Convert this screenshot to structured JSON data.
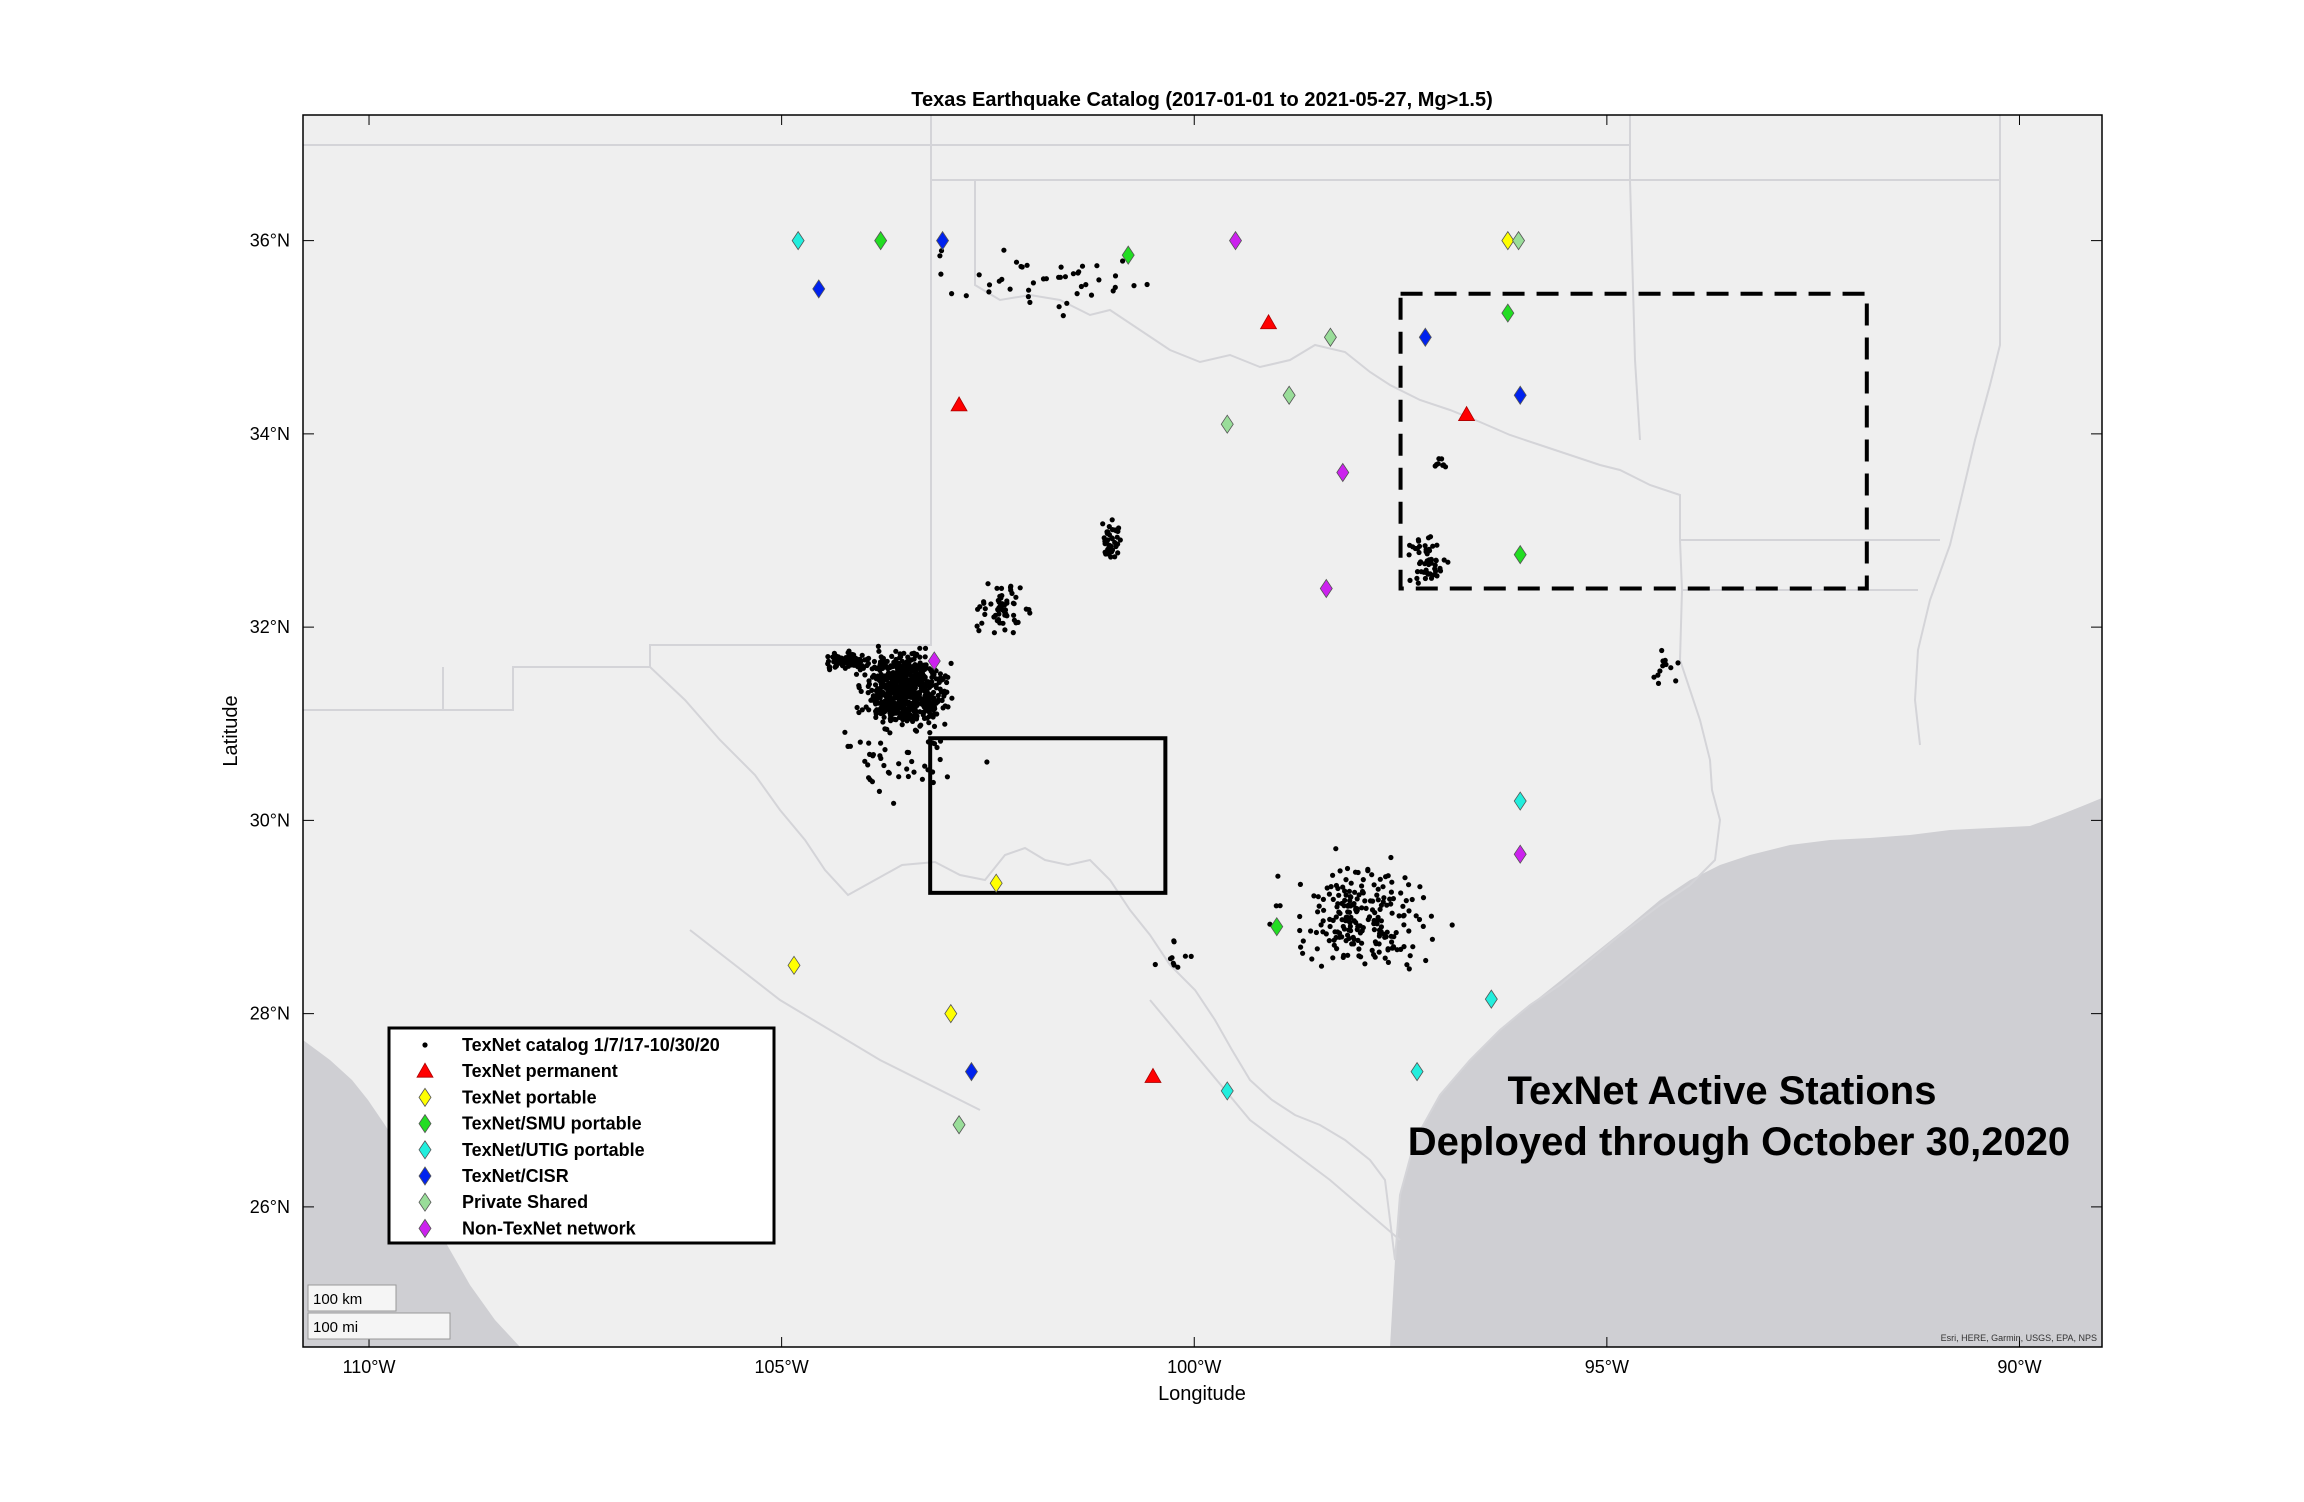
{
  "title": "Texas Earthquake Catalog (2017-01-01 to 2021-05-27, Mg>1.5)",
  "xlabel": "Longitude",
  "ylabel": "Latitude",
  "attribution": "Esri, HERE, Garmin, USGS, EPA, NPS",
  "annotation": [
    "TexNet Active Stations",
    "Deployed through October 30,2020"
  ],
  "scalebar": {
    "km_label": "100 km",
    "mi_label": "100 mi"
  },
  "colors": {
    "land": "#efefef",
    "water": "#cfcfd3",
    "border": "#d4d4d8",
    "catalog": "#000000",
    "permanent": "#ff0000",
    "portable": "#ffff00",
    "smu": "#22dd22",
    "utig": "#22eedd",
    "cisr": "#0022ee",
    "private": "#99dd99",
    "non_texnet": "#cc22ee"
  },
  "chart_data": {
    "type": "scatter",
    "title": "Texas Earthquake Catalog (2017-01-01 to 2021-05-27, Mg>1.5)",
    "xlabel": "Longitude",
    "ylabel": "Latitude",
    "xlim": [
      -110.8,
      -89.0
    ],
    "ylim": [
      24.55,
      37.3
    ],
    "xticks": [
      -110,
      -105,
      -100,
      -95,
      -90
    ],
    "xtick_labels": [
      "110°W",
      "105°W",
      "100°W",
      "95°W",
      "90°W"
    ],
    "yticks": [
      26,
      28,
      30,
      32,
      34,
      36
    ],
    "ytick_labels": [
      "26°N",
      "28°N",
      "30°N",
      "32°N",
      "34°N",
      "36°N"
    ],
    "legend_position": "bottom-left",
    "legend": [
      {
        "key": "catalog",
        "label": "TexNet catalog 1/7/17-10/30/20",
        "marker": "dot"
      },
      {
        "key": "permanent",
        "label": "TexNet permanent",
        "marker": "triangle"
      },
      {
        "key": "portable",
        "label": "TexNet portable",
        "marker": "diamond"
      },
      {
        "key": "smu",
        "label": "TexNet/SMU portable",
        "marker": "diamond"
      },
      {
        "key": "utig",
        "label": "TexNet/UTIG portable",
        "marker": "diamond"
      },
      {
        "key": "cisr",
        "label": "TexNet/CISR",
        "marker": "diamond"
      },
      {
        "key": "private",
        "label": "Private Shared",
        "marker": "diamond"
      },
      {
        "key": "non_texnet",
        "label": "Non-TexNet network",
        "marker": "diamond"
      }
    ],
    "stations": [
      {
        "type": "utig",
        "lon": -104.8,
        "lat": 36.0
      },
      {
        "type": "smu",
        "lon": -103.8,
        "lat": 36.0
      },
      {
        "type": "cisr",
        "lon": -103.05,
        "lat": 36.0
      },
      {
        "type": "smu",
        "lon": -100.8,
        "lat": 35.85
      },
      {
        "type": "non_texnet",
        "lon": -99.5,
        "lat": 36.0
      },
      {
        "type": "portable",
        "lon": -96.2,
        "lat": 36.0
      },
      {
        "type": "private",
        "lon": -96.07,
        "lat": 36.0
      },
      {
        "type": "cisr",
        "lon": -104.55,
        "lat": 35.5
      },
      {
        "type": "permanent",
        "lon": -99.1,
        "lat": 35.15
      },
      {
        "type": "private",
        "lon": -98.35,
        "lat": 35.0
      },
      {
        "type": "smu",
        "lon": -96.2,
        "lat": 35.25
      },
      {
        "type": "cisr",
        "lon": -97.2,
        "lat": 35.0
      },
      {
        "type": "permanent",
        "lon": -102.85,
        "lat": 34.3
      },
      {
        "type": "private",
        "lon": -98.85,
        "lat": 34.4
      },
      {
        "type": "private",
        "lon": -99.6,
        "lat": 34.1
      },
      {
        "type": "permanent",
        "lon": -96.7,
        "lat": 34.2
      },
      {
        "type": "cisr",
        "lon": -96.05,
        "lat": 34.4
      },
      {
        "type": "non_texnet",
        "lon": -98.2,
        "lat": 33.6
      },
      {
        "type": "smu",
        "lon": -96.05,
        "lat": 32.75
      },
      {
        "type": "non_texnet",
        "lon": -98.4,
        "lat": 32.4
      },
      {
        "type": "non_texnet",
        "lon": -103.15,
        "lat": 31.65
      },
      {
        "type": "utig",
        "lon": -96.05,
        "lat": 30.2
      },
      {
        "type": "non_texnet",
        "lon": -96.05,
        "lat": 29.65
      },
      {
        "type": "portable",
        "lon": -102.4,
        "lat": 29.35
      },
      {
        "type": "smu",
        "lon": -99.0,
        "lat": 28.9
      },
      {
        "type": "portable",
        "lon": -104.85,
        "lat": 28.5
      },
      {
        "type": "portable",
        "lon": -102.95,
        "lat": 28.0
      },
      {
        "type": "utig",
        "lon": -96.4,
        "lat": 28.15
      },
      {
        "type": "cisr",
        "lon": -102.7,
        "lat": 27.4
      },
      {
        "type": "permanent",
        "lon": -100.5,
        "lat": 27.35
      },
      {
        "type": "utig",
        "lon": -99.6,
        "lat": 27.2
      },
      {
        "type": "utig",
        "lon": -97.3,
        "lat": 27.4
      },
      {
        "type": "private",
        "lon": -102.85,
        "lat": 26.85
      }
    ],
    "earthquake_clusters": [
      {
        "lon": -103.5,
        "lat": 31.35,
        "spread_lon": 0.45,
        "spread_lat": 0.35,
        "count": 650
      },
      {
        "lon": -104.2,
        "lat": 31.65,
        "spread_lon": 0.25,
        "spread_lat": 0.07,
        "count": 120
      },
      {
        "lon": -102.3,
        "lat": 32.2,
        "spread_lon": 0.3,
        "spread_lat": 0.25,
        "count": 60
      },
      {
        "lon": -101.0,
        "lat": 32.9,
        "spread_lon": 0.1,
        "spread_lat": 0.2,
        "count": 40
      },
      {
        "lon": -98.0,
        "lat": 29.0,
        "spread_lon": 0.8,
        "spread_lat": 0.5,
        "count": 220
      },
      {
        "lon": -97.2,
        "lat": 32.7,
        "spread_lon": 0.25,
        "spread_lat": 0.3,
        "count": 50
      },
      {
        "lon": -101.8,
        "lat": 35.6,
        "spread_lon": 1.3,
        "spread_lat": 0.3,
        "count": 45
      },
      {
        "lon": -103.6,
        "lat": 30.6,
        "spread_lon": 0.8,
        "spread_lat": 0.4,
        "count": 45
      },
      {
        "lon": -94.3,
        "lat": 31.6,
        "spread_lon": 0.2,
        "spread_lat": 0.25,
        "count": 12
      },
      {
        "lon": -97.0,
        "lat": 33.7,
        "spread_lon": 0.1,
        "spread_lat": 0.05,
        "count": 8
      },
      {
        "lon": -100.2,
        "lat": 28.6,
        "spread_lon": 0.25,
        "spread_lat": 0.2,
        "count": 10
      }
    ],
    "boxes": [
      {
        "style": "solid",
        "lon_min": -103.2,
        "lon_max": -100.35,
        "lat_min": 29.25,
        "lat_max": 30.85
      },
      {
        "style": "dashed",
        "lon_min": -97.5,
        "lon_max": -91.85,
        "lat_min": 32.4,
        "lat_max": 35.45
      }
    ]
  }
}
